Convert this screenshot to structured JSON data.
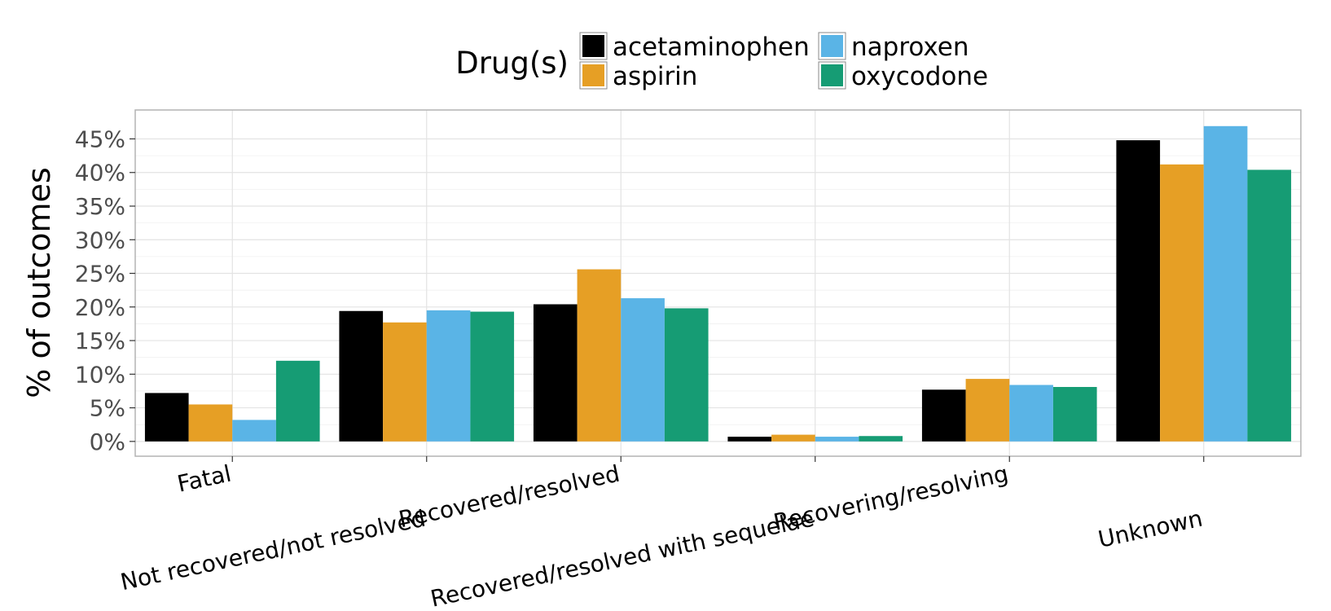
{
  "chart_data": {
    "type": "bar",
    "title": "",
    "xlabel": "",
    "ylabel": "% of outcomes",
    "categories": [
      "Fatal",
      "Not recovered/not resolved",
      "Recovered/resolved",
      "Recovered/resolved with sequelae",
      "Recovering/resolving",
      "Unknown"
    ],
    "series": [
      {
        "name": "acetaminophen",
        "color": "#000000",
        "values": [
          7.2,
          19.4,
          20.4,
          0.7,
          7.7,
          44.8
        ]
      },
      {
        "name": "aspirin",
        "color": "#E69F25",
        "values": [
          5.5,
          17.7,
          25.6,
          1.0,
          9.3,
          41.2
        ]
      },
      {
        "name": "naproxen",
        "color": "#5AB4E6",
        "values": [
          3.2,
          19.5,
          21.3,
          0.7,
          8.4,
          46.9
        ]
      },
      {
        "name": "oxycodone",
        "color": "#169C74",
        "values": [
          12.0,
          19.3,
          19.8,
          0.8,
          8.1,
          40.4
        ]
      }
    ],
    "ylim": [
      -2.2,
      49.3
    ],
    "yticks": [
      0,
      5,
      10,
      15,
      20,
      25,
      30,
      35,
      40,
      45
    ],
    "ytick_labels": [
      "0%",
      "5%",
      "10%",
      "15%",
      "20%",
      "25%",
      "30%",
      "35%",
      "40%",
      "45%"
    ],
    "legend": {
      "title": "Drug(s)",
      "position": "top"
    },
    "grid": true
  }
}
